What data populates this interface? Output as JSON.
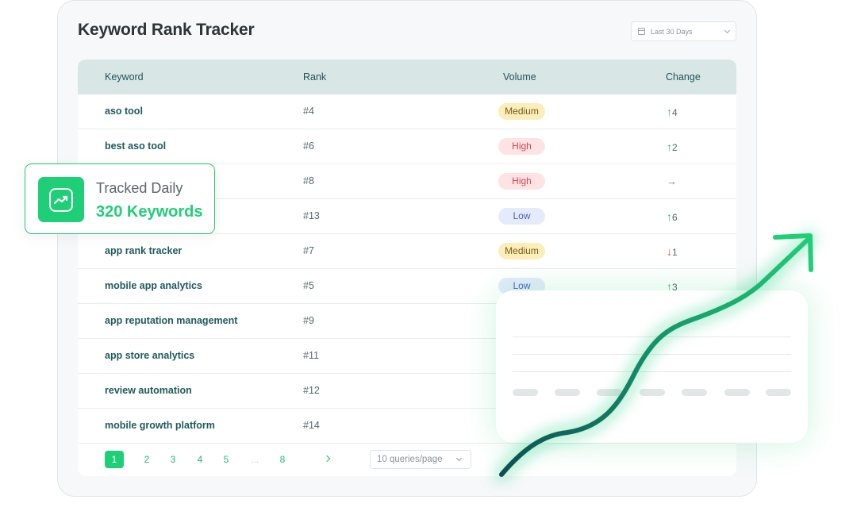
{
  "header": {
    "title": "Keyword Rank Tracker",
    "date_range": "Last 30 Days"
  },
  "table": {
    "columns": {
      "keyword": "Keyword",
      "rank": "Rank",
      "volume": "Volume",
      "change": "Change"
    },
    "rows": [
      {
        "keyword": "aso tool",
        "rank": "#4",
        "volume": "Medium",
        "vol_class": "medium",
        "change": "4",
        "dir": "up"
      },
      {
        "keyword": "best aso tool",
        "rank": "#6",
        "volume": "High",
        "vol_class": "high",
        "change": "2",
        "dir": "up"
      },
      {
        "keyword": "",
        "rank": "#8",
        "volume": "High",
        "vol_class": "high",
        "change": "",
        "dir": "flat"
      },
      {
        "keyword": "",
        "rank": "#13",
        "volume": "Low",
        "vol_class": "low",
        "change": "6",
        "dir": "up"
      },
      {
        "keyword": "app rank tracker",
        "rank": "#7",
        "volume": "Medium",
        "vol_class": "medium",
        "change": "1",
        "dir": "down"
      },
      {
        "keyword": "mobile app analytics",
        "rank": "#5",
        "volume": "Low",
        "vol_class": "low",
        "change": "3",
        "dir": "up"
      },
      {
        "keyword": "app reputation management",
        "rank": "#9",
        "volume": "",
        "vol_class": "",
        "change": "",
        "dir": ""
      },
      {
        "keyword": "app store analytics",
        "rank": "#11",
        "volume": "",
        "vol_class": "",
        "change": "",
        "dir": ""
      },
      {
        "keyword": "review automation",
        "rank": "#12",
        "volume": "",
        "vol_class": "",
        "change": "",
        "dir": ""
      },
      {
        "keyword": "mobile growth platform",
        "rank": "#14",
        "volume": "",
        "vol_class": "",
        "change": "",
        "dir": ""
      }
    ]
  },
  "pagination": {
    "pages": [
      "1",
      "2",
      "3",
      "4",
      "5",
      "...",
      "8"
    ],
    "active": "1",
    "per_page": "10 queries/page"
  },
  "badge": {
    "label": "Tracked Daily",
    "value": "320 Keywords"
  },
  "icons": {
    "calendar": "calendar-icon",
    "dropdown": "chevron-down-icon",
    "next": "chevron-right-icon",
    "trend": "trend-chart-icon",
    "arrow_up": "arrow-up-icon",
    "arrow_down": "arrow-down-icon",
    "arrow_flat": "arrow-right-icon"
  },
  "colors": {
    "accent": "#1fcf78",
    "header_bg": "#d8e6e6",
    "keyword_text": "#1f5a5c",
    "up": "#1fbf70",
    "down": "#e04652"
  }
}
